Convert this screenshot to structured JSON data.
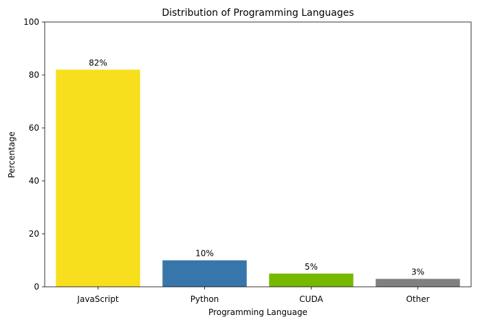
{
  "chart_data": {
    "type": "bar",
    "title": "Distribution of Programming Languages",
    "xlabel": "Programming Language",
    "ylabel": "Percentage",
    "categories": [
      "JavaScript",
      "Python",
      "CUDA",
      "Other"
    ],
    "values": [
      82,
      10,
      5,
      3
    ],
    "data_labels": [
      "82%",
      "10%",
      "5%",
      "3%"
    ],
    "colors": [
      "#f7df1e",
      "#3776ab",
      "#76b900",
      "#808080"
    ],
    "ylim": [
      0,
      100
    ],
    "yticks": [
      0,
      20,
      40,
      60,
      80,
      100
    ],
    "grid": false,
    "legend": "none"
  }
}
